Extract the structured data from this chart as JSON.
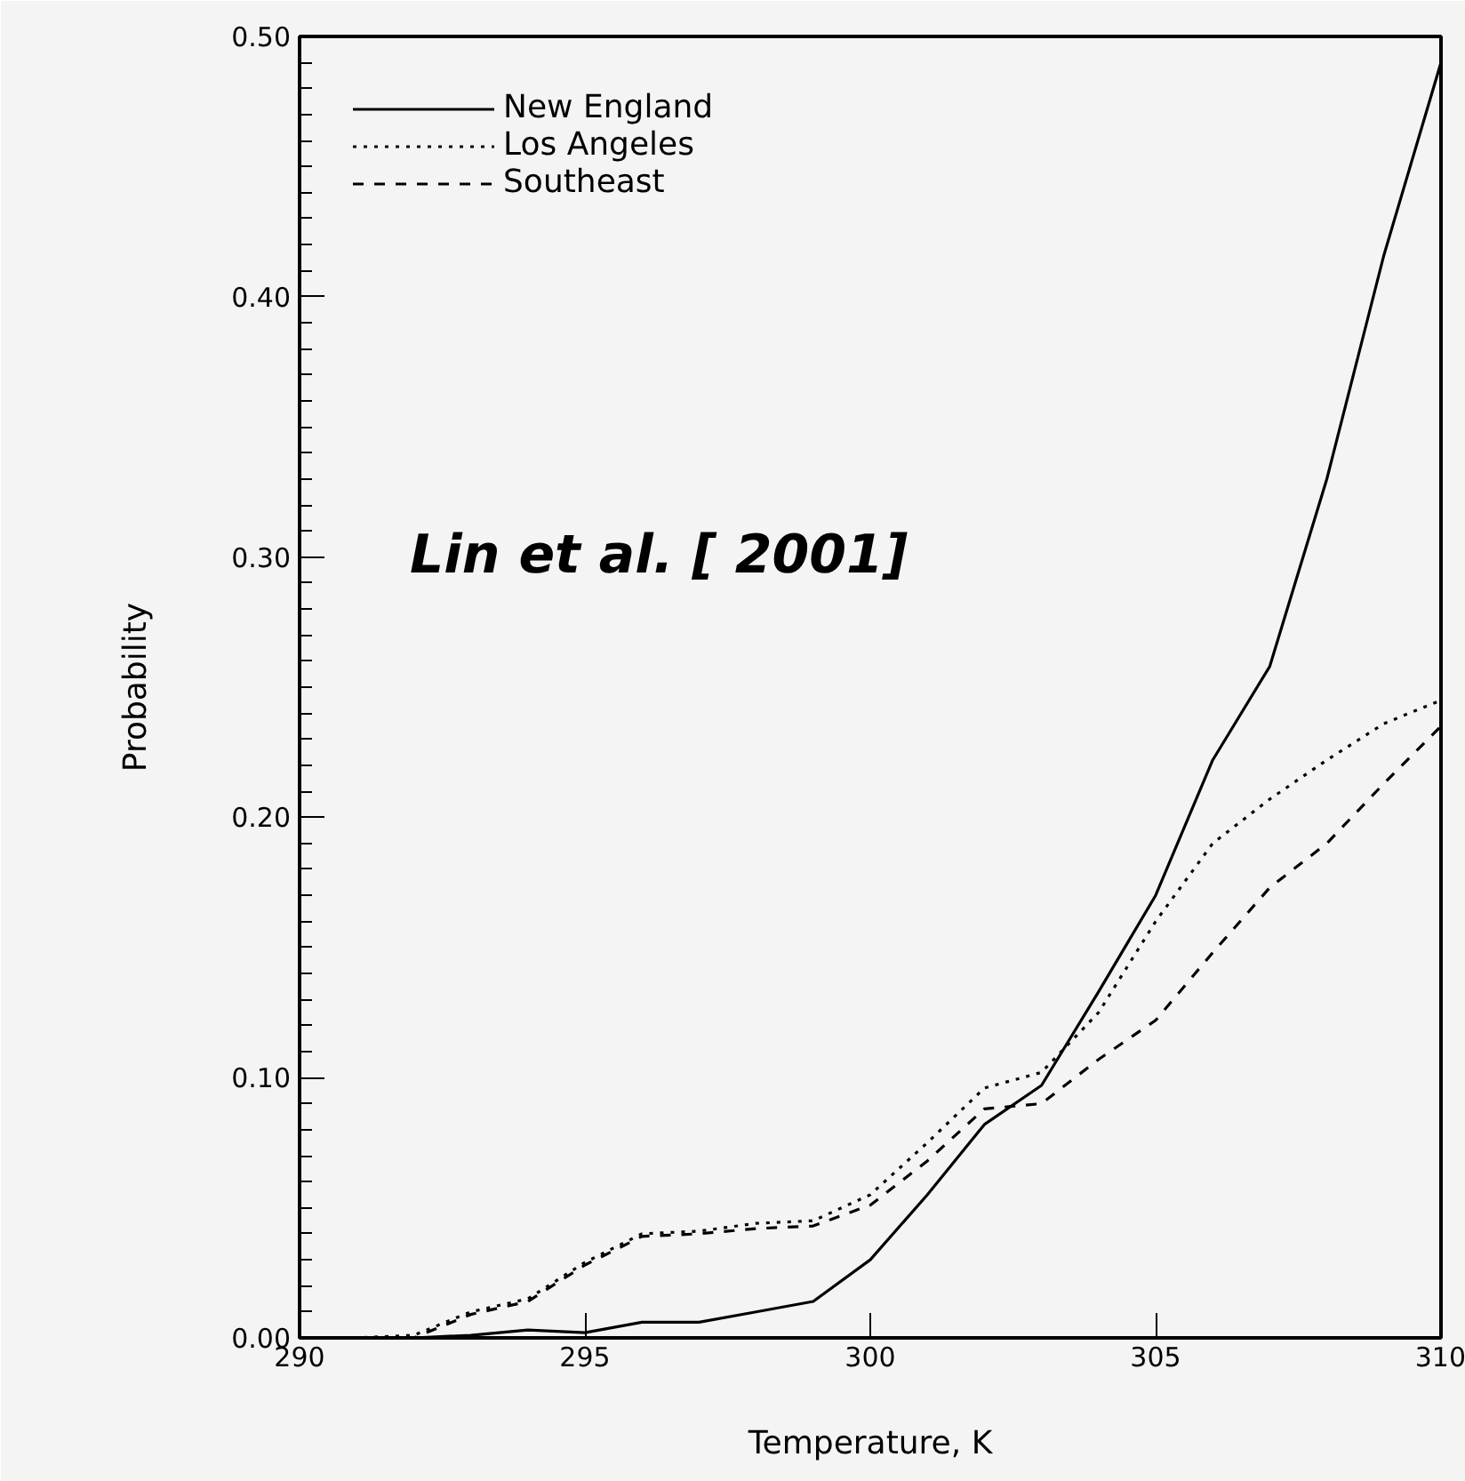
{
  "chart_data": {
    "type": "line",
    "xlabel": "Temperature, K",
    "ylabel": "Probability",
    "x": [
      290,
      291,
      292,
      293,
      294,
      295,
      296,
      297,
      298,
      299,
      300,
      301,
      302,
      303,
      304,
      305,
      306,
      307,
      308,
      309,
      310
    ],
    "series": [
      {
        "name": "New England",
        "color": "#000000",
        "line_style": "solid",
        "values": [
          0,
          0,
          0,
          0.001,
          0.003,
          0.002,
          0.006,
          0.006,
          0.01,
          0.014,
          0.03,
          0.055,
          0.082,
          0.097,
          0.133,
          0.17,
          0.222,
          0.258,
          0.33,
          0.416,
          0.49
        ]
      },
      {
        "name": "Los Angeles",
        "color": "#000000",
        "line_style": "dotted",
        "values": [
          0,
          0,
          0.001,
          0.01,
          0.015,
          0.029,
          0.04,
          0.041,
          0.044,
          0.045,
          0.055,
          0.075,
          0.096,
          0.102,
          0.125,
          0.16,
          0.19,
          0.207,
          0.222,
          0.236,
          0.245
        ]
      },
      {
        "name": "Southeast",
        "color": "#000000",
        "line_style": "dashed",
        "values": [
          0,
          0,
          0,
          0.009,
          0.014,
          0.028,
          0.039,
          0.04,
          0.042,
          0.043,
          0.051,
          0.068,
          0.088,
          0.09,
          0.107,
          0.122,
          0.148,
          0.173,
          0.19,
          0.213,
          0.235
        ]
      }
    ],
    "xlim": [
      290,
      310
    ],
    "ylim": [
      0,
      0.5
    ],
    "xticks": [
      290,
      295,
      300,
      305,
      310
    ],
    "yticks": [
      {
        "value": 0,
        "label": "0.00"
      },
      {
        "value": 0.1,
        "label": "0.10"
      },
      {
        "value": 0.2,
        "label": "0.20"
      },
      {
        "value": 0.3,
        "label": "0.30"
      },
      {
        "value": 0.4,
        "label": "0.40"
      },
      {
        "value": 0.5,
        "label": "0.50"
      }
    ],
    "annotations": [
      "Lin et al. [ 2001]"
    ],
    "grid": false,
    "legend": "top left",
    "marker": "none"
  }
}
